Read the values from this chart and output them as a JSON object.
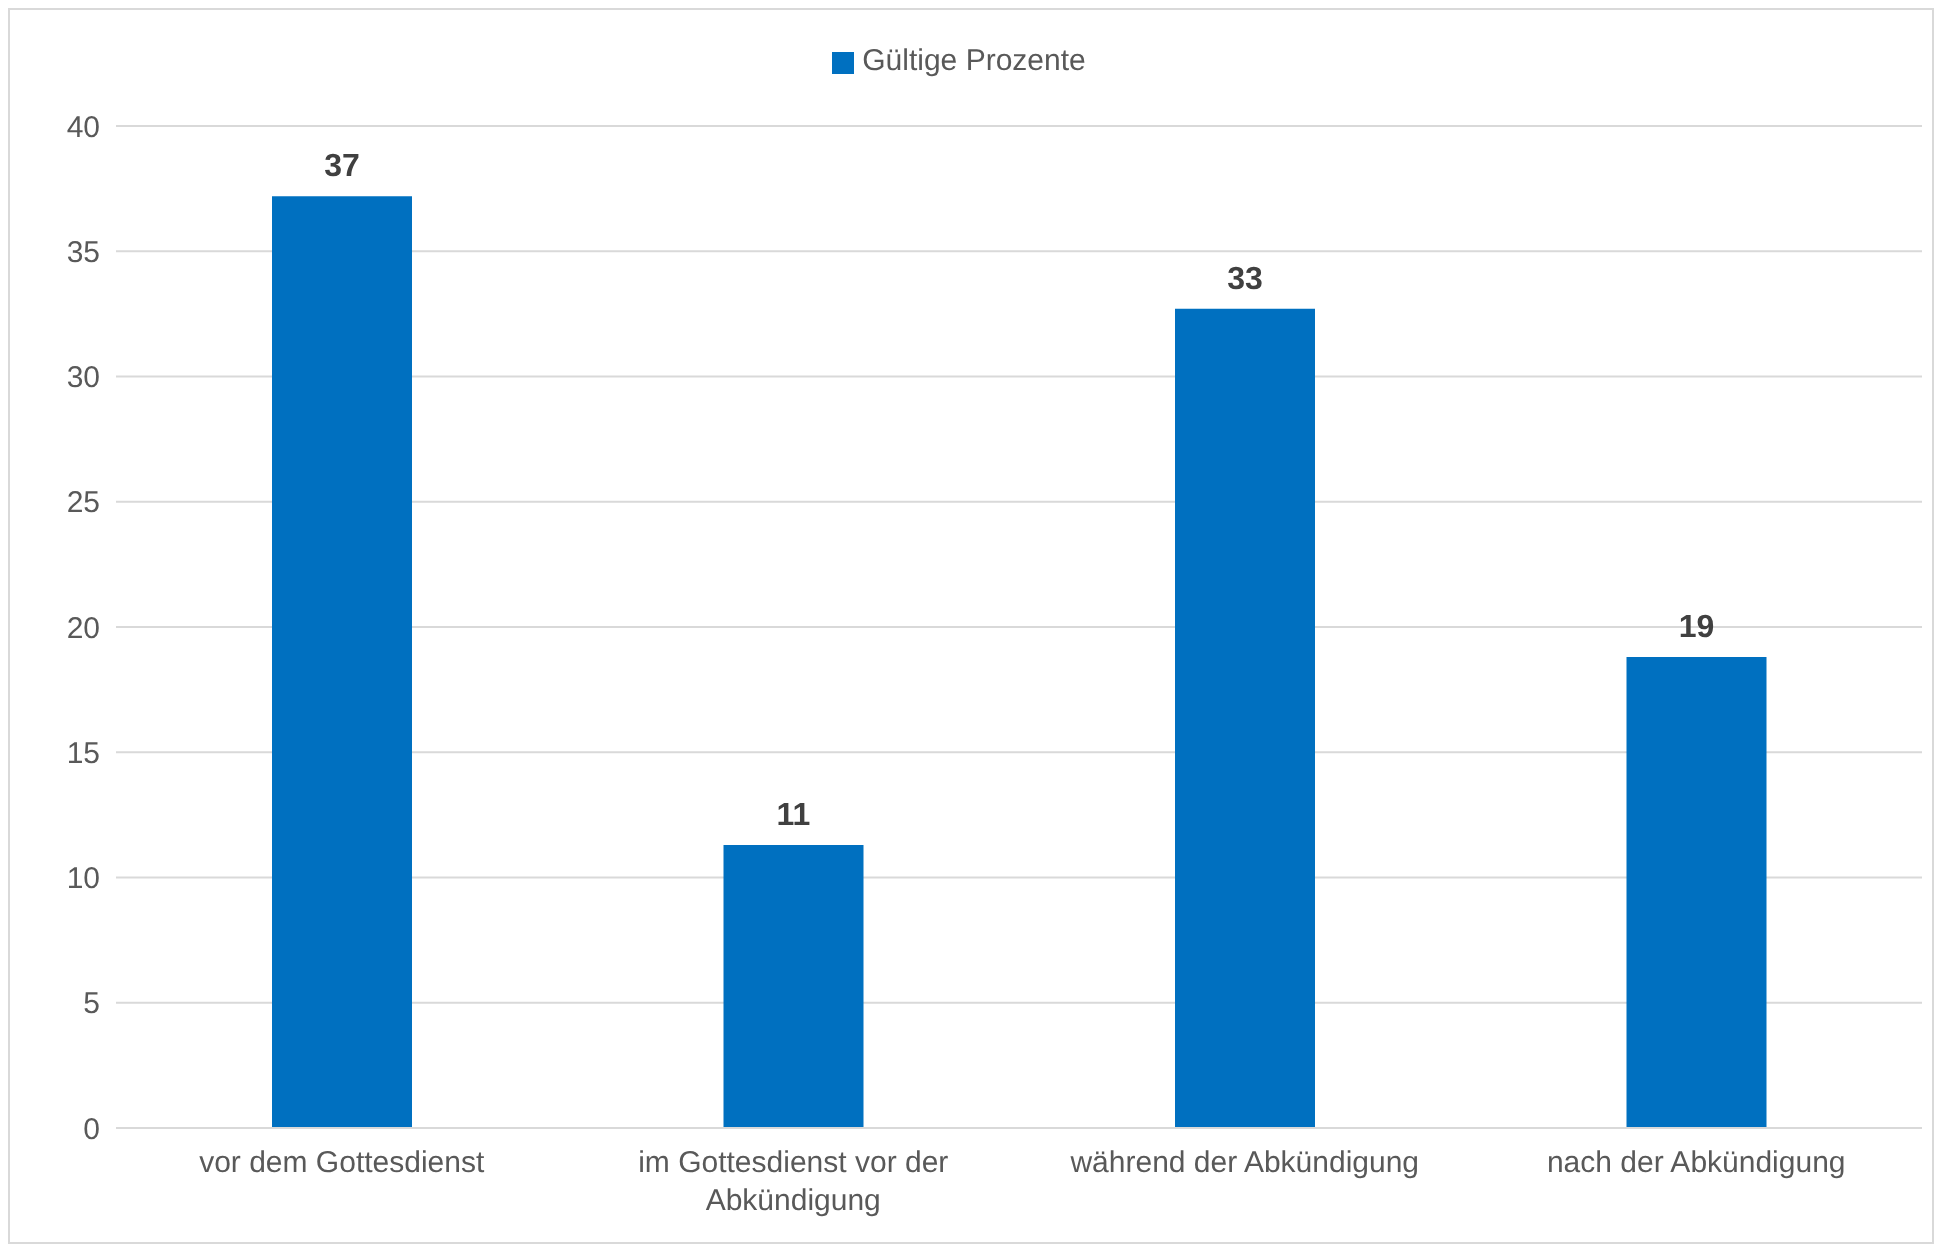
{
  "chart_data": {
    "type": "bar",
    "categories": [
      "vor dem Gottesdienst",
      "im Gottesdienst vor der Abkündigung",
      "während der Abkündigung",
      "nach der Abkündigung"
    ],
    "series": [
      {
        "name": "Gültige Prozente",
        "color": "#0070c0",
        "values": [
          37.2,
          11.3,
          32.7,
          18.8
        ],
        "value_labels": [
          "37",
          "11",
          "33",
          "19"
        ]
      }
    ],
    "ylim": [
      0,
      40
    ],
    "yticks": [
      0,
      5,
      10,
      15,
      20,
      25,
      30,
      35,
      40
    ],
    "grid": "y",
    "legend": "top"
  }
}
